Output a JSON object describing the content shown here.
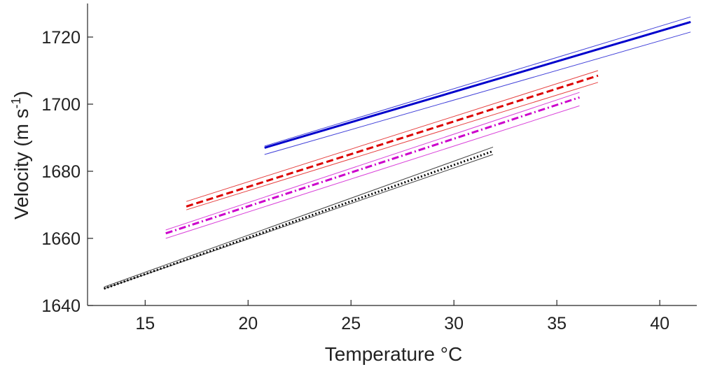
{
  "chart_data": {
    "type": "line",
    "title": "",
    "xlabel": "Temperature °C",
    "ylabel_main": "Velocity (m s",
    "ylabel_sup": "-1",
    "ylabel_close": ")",
    "xlim": [
      12.2,
      41.8
    ],
    "ylim": [
      1640,
      1730
    ],
    "xticks": [
      15,
      20,
      25,
      30,
      35,
      40
    ],
    "yticks": [
      1640,
      1660,
      1680,
      1700,
      1720
    ],
    "xtick_labels": [
      "15",
      "20",
      "25",
      "30",
      "35",
      "40"
    ],
    "ytick_labels": [
      "1640",
      "1660",
      "1680",
      "1700",
      "1720"
    ],
    "grid": false,
    "series": [
      {
        "name": "blue",
        "color": "#0000cc",
        "dash": "solid",
        "x": [
          20.8,
          41.5
        ],
        "y": [
          1687,
          1724.5
        ],
        "upper": [
          1687.5,
          1726
        ],
        "lower": [
          1685,
          1721.5
        ]
      },
      {
        "name": "red",
        "color": "#dd0000",
        "dash": "dashed",
        "x": [
          17.0,
          37.0
        ],
        "y": [
          1669.5,
          1708.5
        ],
        "upper": [
          1671,
          1710
        ],
        "lower": [
          1668.5,
          1706.5
        ]
      },
      {
        "name": "magenta",
        "color": "#cc00cc",
        "dash": "dashdot",
        "x": [
          16.0,
          36.1
        ],
        "y": [
          1661.5,
          1702
        ],
        "upper": [
          1662.5,
          1703.5
        ],
        "lower": [
          1660,
          1699.5
        ]
      },
      {
        "name": "black",
        "color": "#000000",
        "dash": "dotted",
        "x": [
          13.0,
          31.9
        ],
        "y": [
          1645,
          1686
        ],
        "upper": [
          1645.5,
          1687.2
        ],
        "lower": [
          1645,
          1685
        ]
      }
    ]
  }
}
